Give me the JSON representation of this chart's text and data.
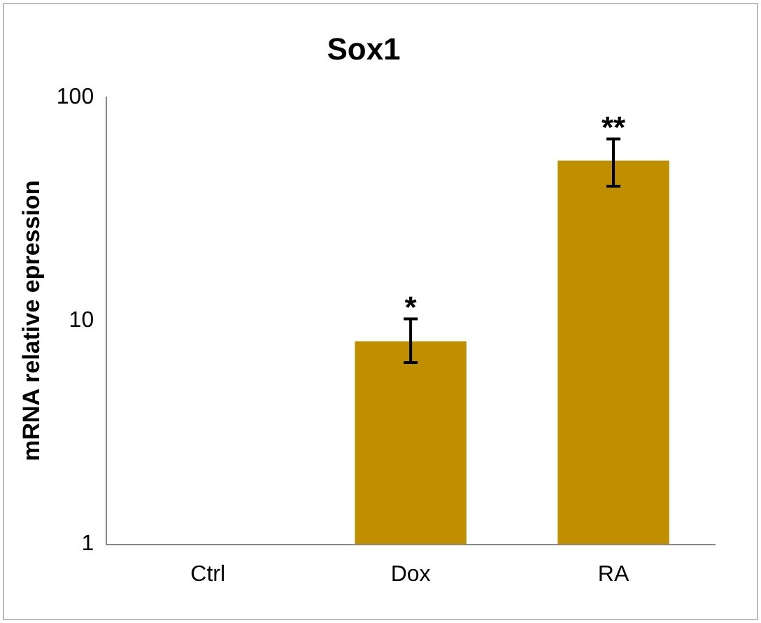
{
  "chart_data": {
    "type": "bar",
    "title": "Sox1",
    "ylabel": "mRNA relative epression",
    "categories": [
      "Ctrl",
      "Dox",
      "RA"
    ],
    "values": [
      1,
      8.1,
      52
    ],
    "color": "#bf8f00",
    "errors": [
      null,
      [
        6.5,
        10.2
      ],
      [
        40,
        65
      ]
    ],
    "log": true,
    "ylim": [
      1,
      100
    ],
    "yticks": [
      1,
      10,
      100
    ],
    "grid": false,
    "legend": false,
    "annotations": [
      {
        "text": "*",
        "x": "Dox",
        "y": 10.2
      },
      {
        "text": "**",
        "x": "RA",
        "y": 65
      }
    ]
  }
}
